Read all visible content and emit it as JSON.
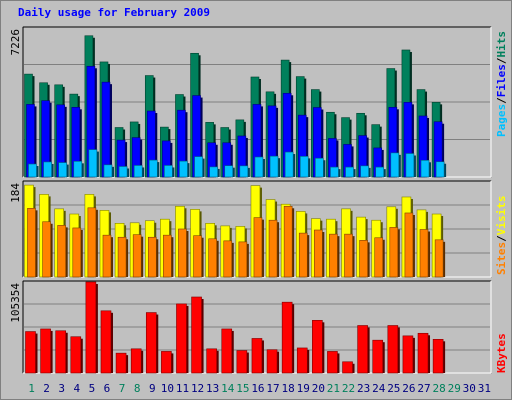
{
  "title": "Daily usage for February 2009",
  "colors": {
    "hits": "#00805c",
    "files": "#0000ff",
    "pages": "#00c0ff",
    "visits": "#ffff00",
    "sites": "#ff8000",
    "kbytes": "#ff0000",
    "title": "#0000ff",
    "weekend_tick": "#00805c",
    "weekday_tick": "#000080"
  },
  "chart_data": [
    {
      "type": "bar",
      "panel": "hits-files-pages",
      "ymax_label": "7226",
      "ymax": 7226,
      "right_label": {
        "pages": "Pages",
        "sep1": "/",
        "files": "Files",
        "sep2": "/",
        "hits": "Hits"
      },
      "series": [
        {
          "name": "Hits",
          "values": [
            4990,
            4570,
            4470,
            4020,
            6850,
            5580,
            2400,
            2670,
            4920,
            2420,
            4000,
            6000,
            2650,
            2400,
            2770,
            4850,
            4130,
            5670,
            4870,
            4240,
            3140,
            2880,
            3090,
            2540,
            5260,
            6160,
            4240,
            3620
          ]
        },
        {
          "name": "Files",
          "values": [
            3520,
            3700,
            3500,
            3380,
            5370,
            4600,
            1790,
            1910,
            3200,
            1750,
            3240,
            3950,
            1660,
            1660,
            1990,
            3520,
            3450,
            4060,
            3000,
            3370,
            1870,
            1580,
            2010,
            1410,
            3380,
            3620,
            2960,
            2680
          ]
        },
        {
          "name": "Pages",
          "values": [
            630,
            730,
            700,
            760,
            1330,
            590,
            510,
            560,
            820,
            560,
            770,
            990,
            490,
            550,
            540,
            970,
            1010,
            1210,
            1000,
            910,
            480,
            480,
            540,
            480,
            1170,
            1140,
            810,
            740
          ]
        }
      ]
    },
    {
      "type": "bar",
      "panel": "visits-sites",
      "ymax_label": "184",
      "ymax": 184,
      "right_label": {
        "sites": "Sites",
        "sep": "/",
        "visits": "Visits"
      },
      "series": [
        {
          "name": "Visits",
          "values": [
            178,
            160,
            132,
            122,
            160,
            129,
            104,
            105,
            109,
            112,
            137,
            131,
            104,
            99,
            98,
            177,
            150,
            141,
            127,
            113,
            112,
            132,
            116,
            110,
            136,
            155,
            130,
            122
          ]
        },
        {
          "name": "Sites",
          "values": [
            133,
            107,
            100,
            95,
            134,
            81,
            77,
            82,
            77,
            81,
            93,
            80,
            74,
            70,
            68,
            115,
            110,
            137,
            85,
            91,
            83,
            83,
            71,
            76,
            96,
            124,
            92,
            72
          ]
        }
      ]
    },
    {
      "type": "bar",
      "panel": "kbytes",
      "ymax_label": "105354",
      "ymax": 105354,
      "right_label": {
        "kbytes": "KBytes"
      },
      "series": [
        {
          "name": "KBytes",
          "values": [
            48000,
            51000,
            48900,
            42000,
            105354,
            72000,
            23000,
            28000,
            70000,
            25000,
            80000,
            88000,
            28000,
            51000,
            26000,
            40000,
            27000,
            82000,
            29000,
            61000,
            25000,
            13000,
            55000,
            38000,
            55000,
            43000,
            46000,
            39000
          ]
        }
      ]
    },
    {
      "type": "axis",
      "x_ticks": [
        "1",
        "2",
        "3",
        "4",
        "5",
        "6",
        "7",
        "8",
        "9",
        "10",
        "11",
        "12",
        "13",
        "14",
        "15",
        "16",
        "17",
        "18",
        "19",
        "20",
        "21",
        "22",
        "23",
        "24",
        "25",
        "26",
        "27",
        "28",
        "29",
        "30",
        "31"
      ],
      "weekend_days": [
        1,
        7,
        8,
        14,
        15,
        21,
        22,
        28,
        29
      ]
    }
  ]
}
